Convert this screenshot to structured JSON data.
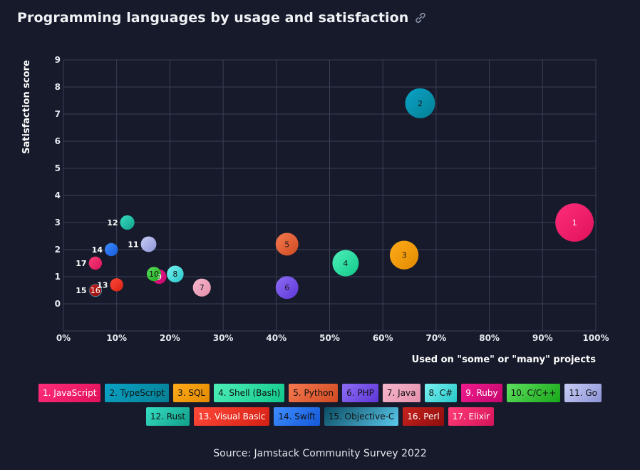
{
  "title": "Programming languages by usage and satisfaction",
  "source": "Source: Jamstack Community Survey 2022",
  "chart_data": {
    "type": "scatter",
    "xlabel": "Used on \"some\" or \"many\" projects",
    "ylabel": "Satisfaction score",
    "xlim": [
      0,
      100
    ],
    "ylim": [
      -1,
      9
    ],
    "xticks": [
      "0%",
      "10%",
      "20%",
      "30%",
      "40%",
      "50%",
      "60%",
      "70%",
      "80%",
      "90%",
      "100%"
    ],
    "yticks": [
      "0",
      "1",
      "2",
      "3",
      "4",
      "5",
      "6",
      "7",
      "8",
      "9"
    ],
    "grid": true,
    "legend_position": "bottom",
    "points": [
      {
        "id": "1",
        "name": "1. JavaScript",
        "x": 96,
        "y": 3.0,
        "size": 3.2,
        "color1": "#ff2d7a",
        "color2": "#e0125a",
        "light": true
      },
      {
        "id": "2",
        "name": "2. TypeScript",
        "x": 67,
        "y": 7.4,
        "size": 2.5,
        "color1": "#0aa3c7",
        "color2": "#057f93",
        "light": false
      },
      {
        "id": "3",
        "name": "3. SQL",
        "x": 64,
        "y": 1.8,
        "size": 2.4,
        "color1": "#ffab1a",
        "color2": "#e28a00",
        "light": false
      },
      {
        "id": "4",
        "name": "4. Shell (Bash)",
        "x": 53,
        "y": 1.5,
        "size": 2.2,
        "color1": "#4ef0b8",
        "color2": "#11c78b",
        "light": false
      },
      {
        "id": "5",
        "name": "5. Python",
        "x": 42,
        "y": 2.2,
        "size": 1.9,
        "color1": "#f57a4f",
        "color2": "#d04a22",
        "light": false
      },
      {
        "id": "6",
        "name": "6. PHP",
        "x": 42,
        "y": 0.6,
        "size": 1.9,
        "color1": "#8e6cf5",
        "color2": "#5e37d6",
        "light": false
      },
      {
        "id": "7",
        "name": "7. Java",
        "x": 26,
        "y": 0.6,
        "size": 1.5,
        "color1": "#f6b7cc",
        "color2": "#e590ac",
        "light": false
      },
      {
        "id": "8",
        "name": "8. C#",
        "x": 21,
        "y": 1.1,
        "size": 1.4,
        "color1": "#7cf1f1",
        "color2": "#25c7c9",
        "light": false
      },
      {
        "id": "9",
        "name": "9. Ruby",
        "x": 18,
        "y": 1.0,
        "size": 1.2,
        "color1": "#f01c8e",
        "color2": "#c4076b",
        "light": true
      },
      {
        "id": "10",
        "name": "10. C/C++",
        "x": 17,
        "y": 1.1,
        "size": 1.2,
        "color1": "#5fe05f",
        "color2": "#18a618",
        "light": false
      },
      {
        "id": "11",
        "name": "11. Go",
        "x": 16,
        "y": 2.2,
        "size": 1.3,
        "color1": "#c8cdf5",
        "color2": "#8d94d7",
        "light": false
      },
      {
        "id": "12",
        "name": "12. Rust",
        "x": 12,
        "y": 3.0,
        "size": 1.2,
        "color1": "#35ddc2",
        "color2": "#129f89",
        "light": false
      },
      {
        "id": "13",
        "name": "13. Visual Basic",
        "x": 10,
        "y": 0.7,
        "size": 1.1,
        "color1": "#ff4a3a",
        "color2": "#d41f13",
        "light": true
      },
      {
        "id": "14",
        "name": "14. Swift",
        "x": 9,
        "y": 2.0,
        "size": 1.1,
        "color1": "#3f8dff",
        "color2": "#1459d9",
        "light": false
      },
      {
        "id": "15",
        "name": "15. Objective-C",
        "x": 6,
        "y": 0.5,
        "size": 1.1,
        "color1": "#0b4c63",
        "color2": "#5ac9ec",
        "light": false
      },
      {
        "id": "16",
        "name": "16. Perl",
        "x": 6,
        "y": 0.5,
        "size": 1.0,
        "color1": "#c8221e",
        "color2": "#8d0e0c",
        "light": true
      },
      {
        "id": "17",
        "name": "17. Elixir",
        "x": 6,
        "y": 1.5,
        "size": 1.1,
        "color1": "#ff3d77",
        "color2": "#d5135a",
        "light": true
      }
    ]
  }
}
